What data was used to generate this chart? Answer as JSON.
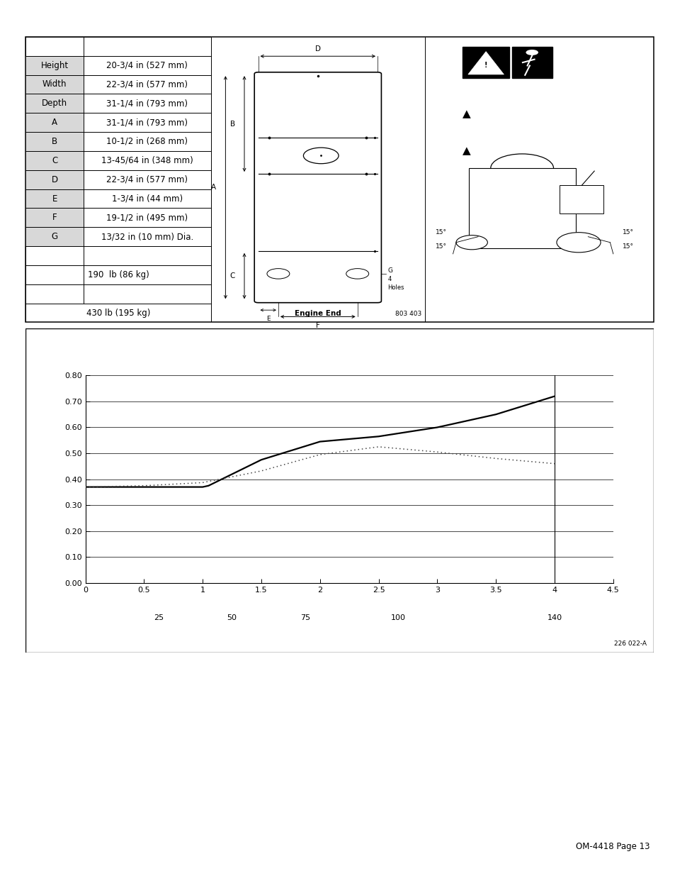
{
  "page_bg": "#ffffff",
  "table_rows": [
    [
      "Height",
      "20-3/4 in (527 mm)"
    ],
    [
      "Width",
      "22-3/4 in (577 mm)"
    ],
    [
      "Depth",
      "31-1/4 in (793 mm)"
    ],
    [
      "A",
      "31-1/4 in (793 mm)"
    ],
    [
      "B",
      "10-1/2 in (268 mm)"
    ],
    [
      "C",
      "13-45/64 in (348 mm)"
    ],
    [
      "D",
      "22-3/4 in (577 mm)"
    ],
    [
      "E",
      "1-3/4 in (44 mm)"
    ],
    [
      "F",
      "19-1/2 in (495 mm)"
    ],
    [
      "G",
      "13/32 in (10 mm) Dia."
    ]
  ],
  "weight1": "190  lb (86 kg)",
  "weight2": "430 lb (195 kg)",
  "engine_end": "Engine End",
  "drawing_ref": "803 403",
  "chart_ref": "226 022-A",
  "page_label": "OM-4418 Page 13",
  "solid_x": [
    0,
    0.5,
    1.0,
    1.05,
    1.5,
    2.0,
    2.5,
    3.0,
    3.5,
    4.0
  ],
  "solid_y": [
    0.37,
    0.37,
    0.37,
    0.375,
    0.475,
    0.545,
    0.565,
    0.6,
    0.65,
    0.72
  ],
  "dotted_x": [
    0,
    0.5,
    1.0,
    1.5,
    2.0,
    2.5,
    3.0,
    3.5,
    4.0
  ],
  "dotted_y": [
    0.37,
    0.375,
    0.387,
    0.432,
    0.495,
    0.525,
    0.505,
    0.48,
    0.46
  ],
  "yticks": [
    0.0,
    0.1,
    0.2,
    0.3,
    0.4,
    0.5,
    0.6,
    0.7,
    0.8
  ],
  "xticks": [
    0,
    0.5,
    1.0,
    1.5,
    2.0,
    2.5,
    3.0,
    3.5,
    4.0,
    4.5
  ],
  "xtick_labels": [
    "0",
    "0.5",
    "1",
    "1.5",
    "2",
    "2.5",
    "3",
    "3.5",
    "4",
    "4.5"
  ],
  "bottom_ticks_x": [
    0.625,
    1.25,
    1.875,
    2.667,
    4.0
  ],
  "bottom_ticks_labels": [
    "25",
    "50",
    "75",
    "100",
    "140"
  ],
  "tick_fontsize": 8.0,
  "table_fontsize": 8.5
}
